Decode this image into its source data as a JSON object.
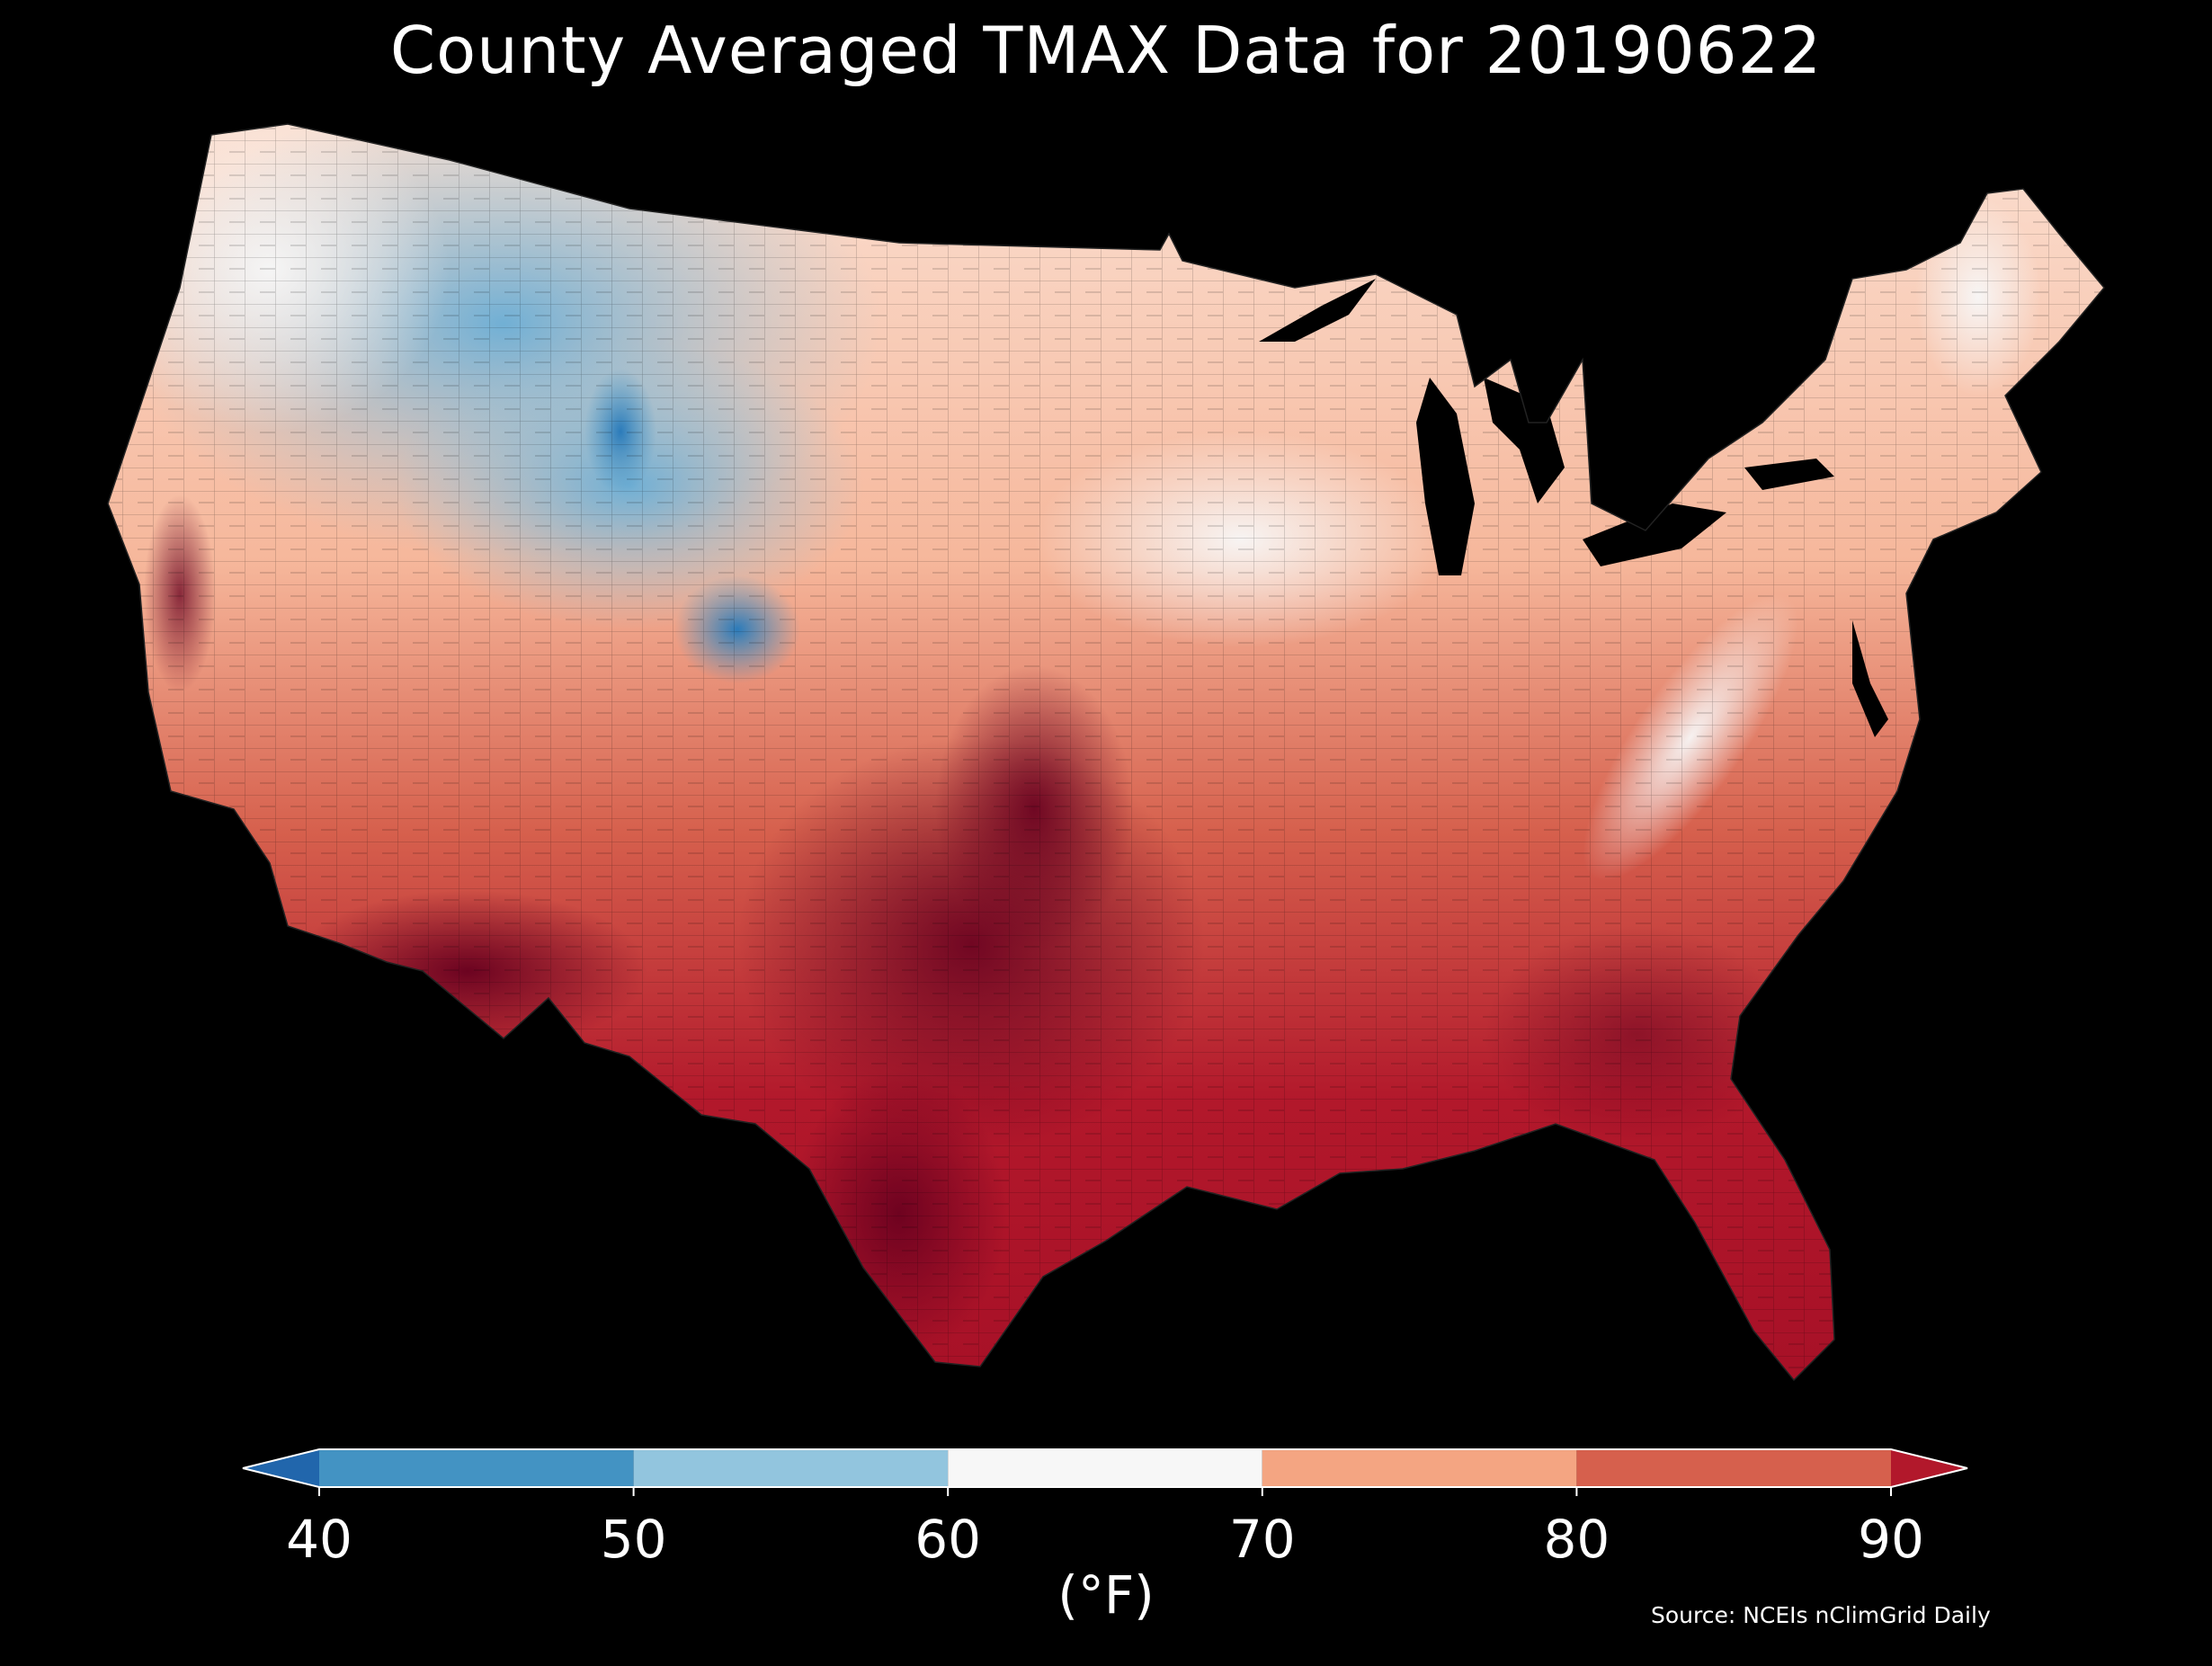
{
  "title": "County Averaged TMAX Data for 20190622",
  "colorbar": {
    "units": "(°F)",
    "ticks": [
      "40",
      "50",
      "60",
      "70",
      "80",
      "90"
    ],
    "bins": [
      {
        "from": "min",
        "to": 40,
        "color": "#2166ac"
      },
      {
        "from": 40,
        "to": 50,
        "color": "#4393c3"
      },
      {
        "from": 50,
        "to": 60,
        "color": "#92c5de"
      },
      {
        "from": 60,
        "to": 70,
        "color": "#f7f7f7"
      },
      {
        "from": 70,
        "to": 80,
        "color": "#f4a582"
      },
      {
        "from": 80,
        "to": 90,
        "color": "#d6604d"
      },
      {
        "from": 90,
        "to": "max",
        "color": "#b2182b"
      }
    ],
    "extend": "both"
  },
  "source": "Source: NCEIs nClimGrid Daily",
  "map": {
    "region": "contiguous United States",
    "variable": "TMAX",
    "colormap": "RdBu_r",
    "background": "#000000"
  }
}
